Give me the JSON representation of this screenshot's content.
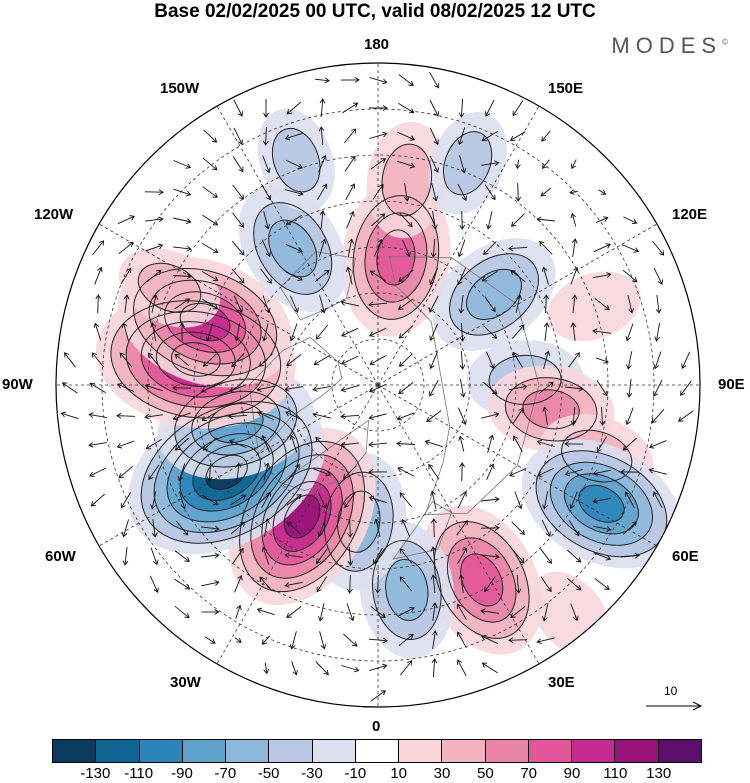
{
  "title": "Base 02/02/2025 00 UTC, valid 08/02/2025 12 UTC",
  "brand": "MODES",
  "brand_mark": "©",
  "longitude_labels": {
    "top": "180",
    "bottom": "0",
    "left": "90W",
    "right": "90E",
    "upper_left_inner": "150W",
    "upper_right_inner": "150E",
    "upper_left_outer": "120W",
    "upper_right_outer": "120E",
    "lower_left_outer": "60W",
    "lower_right_outer": "60E",
    "lower_left_inner": "30W",
    "lower_right_inner": "30E"
  },
  "wind_scale_label": "10",
  "colorbar": {
    "colors": [
      "#0b3b5c",
      "#0f6592",
      "#2c85b8",
      "#5fa3cc",
      "#8db8db",
      "#b6c8e3",
      "#dcdff0",
      "#ffffff",
      "#f9d7dc",
      "#f2b3c0",
      "#ea85a8",
      "#e2579a",
      "#c52a8f",
      "#97137a",
      "#5c0f6a"
    ],
    "ticks": [
      "-130",
      "-110",
      "-90",
      "-70",
      "-50",
      "-30",
      "-10",
      "10",
      "30",
      "50",
      "70",
      "90",
      "110",
      "130"
    ]
  },
  "anomaly_centers": [
    {
      "lon_deg": 172,
      "lat_deg": 62,
      "value": 80
    },
    {
      "lon_deg": 172,
      "lat_deg": 45,
      "value": 40
    },
    {
      "lon_deg": 128,
      "lat_deg": 58,
      "value": -60
    },
    {
      "lon_deg": 92,
      "lat_deg": 58,
      "value": -40
    },
    {
      "lon_deg": 82,
      "lat_deg": 52,
      "value": 50
    },
    {
      "lon_deg": 72,
      "lat_deg": 40,
      "value": 40
    },
    {
      "lon_deg": 62,
      "lat_deg": 35,
      "value": -90
    },
    {
      "lon_deg": 28,
      "lat_deg": 42,
      "value": 80
    },
    {
      "lon_deg": 8,
      "lat_deg": 45,
      "value": -60
    },
    {
      "lon_deg": 352,
      "lat_deg": 60,
      "value": -60
    },
    {
      "lon_deg": 330,
      "lat_deg": 57,
      "value": 110
    },
    {
      "lon_deg": 300,
      "lat_deg": 52,
      "value": -130
    },
    {
      "lon_deg": 285,
      "lat_deg": 58,
      "value": -80
    },
    {
      "lon_deg": 262,
      "lat_deg": 50,
      "value": 120
    },
    {
      "lon_deg": 250,
      "lat_deg": 50,
      "value": 100
    },
    {
      "lon_deg": 212,
      "lat_deg": 55,
      "value": -60
    },
    {
      "lon_deg": 245,
      "lat_deg": 40,
      "value": 30
    },
    {
      "lon_deg": 200,
      "lat_deg": 38,
      "value": -30
    },
    {
      "lon_deg": 158,
      "lat_deg": 38,
      "value": -30
    },
    {
      "lon_deg": 110,
      "lat_deg": 40,
      "value": 20
    },
    {
      "lon_deg": 40,
      "lat_deg": 25,
      "value": 20
    }
  ]
}
